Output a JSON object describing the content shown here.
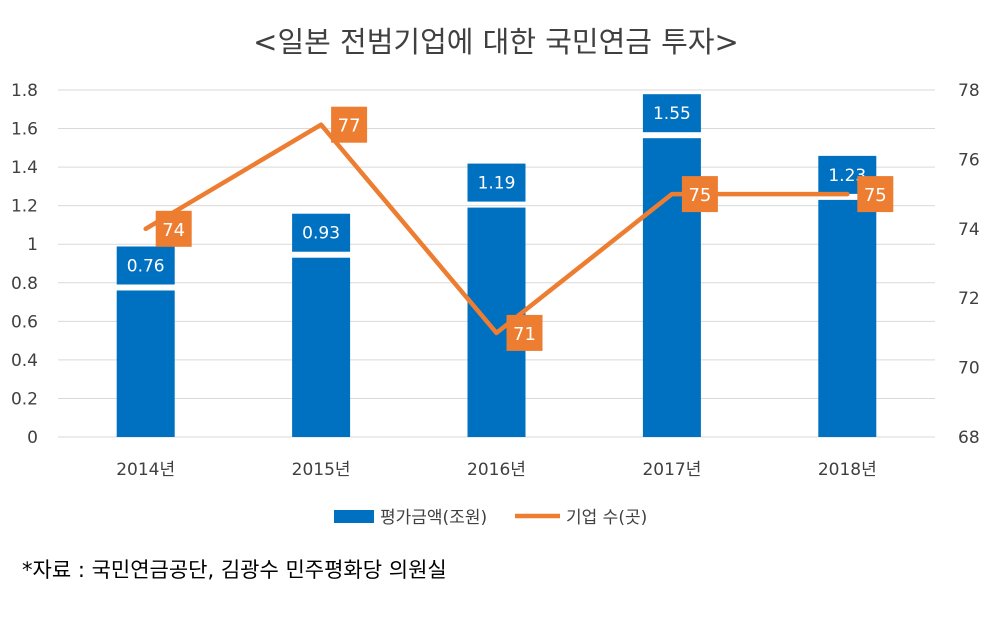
{
  "title": "<일본 전범기업에 대한 국민연금 투자>",
  "source": "*자료 : 국민연금공단, 김광수 민주평화당 의원실",
  "colors": {
    "bar": "#0070C0",
    "line": "#ED7D31",
    "grid": "#D9D9D9",
    "text": "#404040"
  },
  "legend": {
    "bar_label": "평가금액(조원)",
    "line_label": "기업 수(곳)",
    "position": "bottom"
  },
  "chart_data": {
    "type": "bar",
    "combo": "bar + line (secondary axis)",
    "title": "<일본 전범기업에 대한 국민연금 투자>",
    "categories": [
      "2014년",
      "2015년",
      "2016년",
      "2017년",
      "2018년"
    ],
    "series": [
      {
        "name": "평가금액(조원)",
        "type": "bar",
        "axis": "left",
        "values": [
          0.76,
          0.93,
          1.19,
          1.55,
          1.23
        ],
        "value_labels": [
          "0.76",
          "0.93",
          "1.19",
          "1.55",
          "1.23"
        ]
      },
      {
        "name": "기업 수(곳)",
        "type": "line",
        "axis": "right",
        "values": [
          74,
          77,
          71,
          75,
          75
        ],
        "value_labels": [
          "74",
          "77",
          "71",
          "75",
          "75"
        ]
      }
    ],
    "y_left": {
      "range": [
        0,
        1.8
      ],
      "ticks": [
        "0",
        "0.2",
        "0.4",
        "0.6",
        "0.8",
        "1",
        "1.2",
        "1.4",
        "1.6",
        "1.8"
      ]
    },
    "y_right": {
      "range": [
        68,
        78
      ],
      "ticks": [
        "68",
        "70",
        "72",
        "74",
        "76",
        "78"
      ]
    },
    "grid": true
  }
}
